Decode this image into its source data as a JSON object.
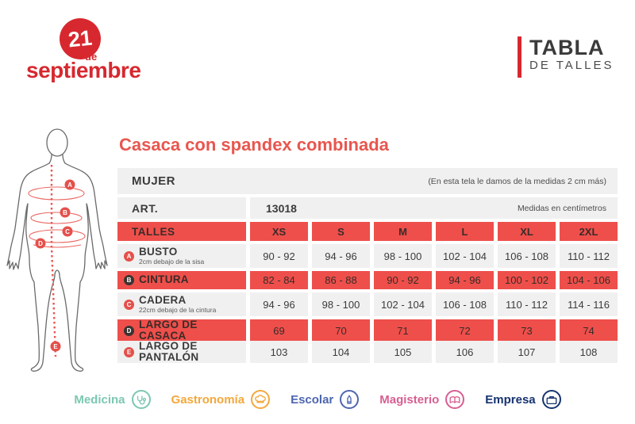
{
  "brand": {
    "circle_number": "21",
    "de_text": "de",
    "name": "septiembre"
  },
  "header_right": {
    "line1": "TABLA",
    "line2": "DE TALLES"
  },
  "product": {
    "title": "Casaca con spandex combinada"
  },
  "table": {
    "gender": "MUJER",
    "gender_note": "(En esta tela le damos de la medidas 2 cm más)",
    "art_label": "ART.",
    "art_value": "13018",
    "units_note": "Medidas en centímetros",
    "sizes_label": "TALLES",
    "sizes": [
      "XS",
      "S",
      "M",
      "L",
      "XL",
      "2XL"
    ],
    "rows": [
      {
        "marker": "A",
        "label": "BUSTO",
        "sublabel": "2cm debajo de la sisa",
        "highlight": false,
        "values": [
          "90 - 92",
          "94 - 96",
          "98 - 100",
          "102 - 104",
          "106 - 108",
          "110 - 112"
        ]
      },
      {
        "marker": "B",
        "label": "CINTURA",
        "sublabel": "",
        "highlight": true,
        "values": [
          "82 - 84",
          "86 - 88",
          "90 - 92",
          "94 - 96",
          "100 - 102",
          "104 - 106"
        ]
      },
      {
        "marker": "C",
        "label": "CADERA",
        "sublabel": "22cm debajo de la cintura",
        "highlight": false,
        "values": [
          "94 - 96",
          "98 - 100",
          "102 - 104",
          "106 - 108",
          "110 - 112",
          "114 - 116"
        ]
      },
      {
        "marker": "D",
        "label": "LARGO DE CASACA",
        "sublabel": "",
        "highlight": true,
        "values": [
          "69",
          "70",
          "71",
          "72",
          "73",
          "74"
        ]
      },
      {
        "marker": "E",
        "label": "LARGO DE PANTALÓN",
        "sublabel": "",
        "highlight": false,
        "values": [
          "103",
          "104",
          "105",
          "106",
          "107",
          "108"
        ]
      }
    ]
  },
  "figure_markers": [
    "A",
    "B",
    "C",
    "D",
    "E"
  ],
  "footer": {
    "categories": [
      {
        "label": "Medicina",
        "icon": "stethoscope-icon",
        "color": "#7cc7b2",
        "bold": false
      },
      {
        "label": "Gastronomía",
        "icon": "chef-hat-icon",
        "color": "#f3a83c",
        "bold": false
      },
      {
        "label": "Escolar",
        "icon": "pencil-icon",
        "color": "#4d66ae",
        "bold": false
      },
      {
        "label": "Magisterio",
        "icon": "book-icon",
        "color": "#d85f92",
        "bold": false
      },
      {
        "label": "Empresa",
        "icon": "briefcase-icon",
        "color": "#16336f",
        "bold": true
      }
    ]
  },
  "colors": {
    "logo_red": "#d7282f",
    "table_red": "#ee4f4b",
    "title_red": "#e8564f",
    "row_gray": "#f1f0f0",
    "dark_text": "#3b3b3b",
    "red_row_text": "#3a2b28"
  }
}
